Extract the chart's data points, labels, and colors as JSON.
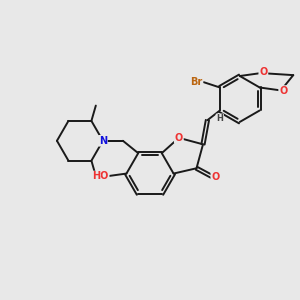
{
  "bg_color": "#e8e8e8",
  "bond_color": "#1a1a1a",
  "bond_width": 1.4,
  "atom_colors": {
    "O": "#ee3333",
    "N": "#1111dd",
    "Br": "#bb6611",
    "H": "#444444",
    "C": "#1a1a1a"
  },
  "font_size_atom": 7.0,
  "font_size_small": 6.0
}
